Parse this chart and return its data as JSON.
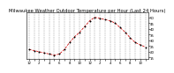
{
  "title": "Milwaukee Weather Outdoor Temperature per Hour (Last 24 Hours)",
  "hours": [
    0,
    1,
    2,
    3,
    4,
    5,
    6,
    7,
    8,
    9,
    10,
    11,
    12,
    13,
    14,
    15,
    16,
    17,
    18,
    19,
    20,
    21,
    22,
    23
  ],
  "temps": [
    22,
    21,
    20,
    19,
    18,
    17,
    18,
    22,
    28,
    33,
    37,
    42,
    47,
    50,
    49,
    48,
    47,
    45,
    41,
    37,
    32,
    28,
    26,
    24
  ],
  "line_color": "#cc0000",
  "marker_color": "#000000",
  "bg_color": "#ffffff",
  "grid_color": "#999999",
  "ylim_min": 14,
  "ylim_max": 54,
  "ytick_values": [
    15,
    20,
    25,
    30,
    35,
    40,
    45,
    50
  ],
  "title_fontsize": 3.8,
  "tick_fontsize": 2.8,
  "xtick_step": 2
}
